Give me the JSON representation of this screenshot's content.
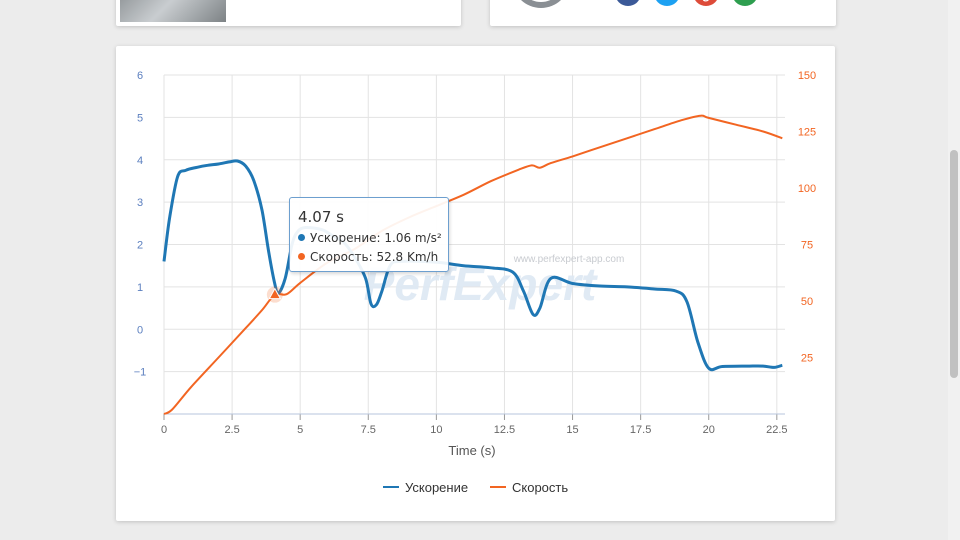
{
  "social_icons": [
    {
      "icon": "facebook-icon",
      "color": "#3b5998",
      "glyph": "f"
    },
    {
      "icon": "twitter-icon",
      "color": "#1da1f2",
      "glyph": "t"
    },
    {
      "icon": "google-plus-icon",
      "color": "#dd4b39",
      "glyph": "g"
    },
    {
      "icon": "email-icon",
      "color": "#2e9e4f",
      "glyph": "✉"
    }
  ],
  "chart_data": {
    "type": "line",
    "xlabel": "Time (s)",
    "x_ticks": [
      0,
      2.5,
      5,
      7.5,
      10,
      12.5,
      15,
      17.5,
      20,
      22.5
    ],
    "xlim": [
      0,
      22.8
    ],
    "y_left_ticks": [
      "6",
      "5",
      "4",
      "3",
      "2",
      "1",
      "0",
      "−1"
    ],
    "y_left_range": [
      -2,
      6
    ],
    "y_right_ticks": [
      "150",
      "125",
      "100",
      "75",
      "50",
      "25"
    ],
    "y_right_range": [
      0,
      150
    ],
    "watermark_url": "www.perfexpert-app.com",
    "watermark_logo": "PerfExpert",
    "series": [
      {
        "name": "Ускорение",
        "axis": "left",
        "color": "#1f77b4",
        "points": [
          [
            0,
            1.6
          ],
          [
            0.2,
            2.6
          ],
          [
            0.5,
            3.6
          ],
          [
            0.8,
            3.75
          ],
          [
            1.2,
            3.82
          ],
          [
            1.6,
            3.87
          ],
          [
            2.0,
            3.9
          ],
          [
            2.4,
            3.95
          ],
          [
            2.7,
            3.97
          ],
          [
            3.0,
            3.85
          ],
          [
            3.3,
            3.5
          ],
          [
            3.6,
            2.8
          ],
          [
            3.85,
            1.8
          ],
          [
            4.07,
            1.06
          ],
          [
            4.2,
            0.85
          ],
          [
            4.45,
            1.2
          ],
          [
            4.7,
            2.0
          ],
          [
            4.9,
            2.3
          ],
          [
            5.2,
            2.4
          ],
          [
            5.8,
            2.35
          ],
          [
            6.2,
            2.2
          ],
          [
            6.6,
            2.05
          ],
          [
            7.0,
            1.7
          ],
          [
            7.4,
            1.2
          ],
          [
            7.6,
            0.6
          ],
          [
            7.8,
            0.58
          ],
          [
            8.0,
            0.9
          ],
          [
            8.3,
            1.5
          ],
          [
            8.7,
            1.6
          ],
          [
            10,
            1.58
          ],
          [
            11,
            1.5
          ],
          [
            12,
            1.45
          ],
          [
            12.8,
            1.35
          ],
          [
            13.2,
            0.9
          ],
          [
            13.55,
            0.35
          ],
          [
            13.8,
            0.5
          ],
          [
            14.2,
            1.2
          ],
          [
            15,
            1.08
          ],
          [
            16,
            1.02
          ],
          [
            17,
            1.0
          ],
          [
            18,
            0.95
          ],
          [
            18.8,
            0.9
          ],
          [
            19.2,
            0.65
          ],
          [
            19.6,
            -0.3
          ],
          [
            20.0,
            -0.92
          ],
          [
            20.5,
            -0.88
          ],
          [
            21.5,
            -0.87
          ],
          [
            22,
            -0.87
          ],
          [
            22.4,
            -0.9
          ],
          [
            22.7,
            -0.85
          ]
        ]
      },
      {
        "name": "Скорость",
        "axis": "right",
        "color": "#f26522",
        "points": [
          [
            0,
            0
          ],
          [
            0.3,
            2
          ],
          [
            1,
            12
          ],
          [
            2,
            25
          ],
          [
            3,
            38
          ],
          [
            3.6,
            46
          ],
          [
            4.07,
            52.8
          ],
          [
            4.5,
            53
          ],
          [
            5,
            58
          ],
          [
            6,
            67
          ],
          [
            7,
            73
          ],
          [
            8,
            81
          ],
          [
            9,
            87
          ],
          [
            10,
            92
          ],
          [
            11,
            97
          ],
          [
            12,
            103
          ],
          [
            13,
            108
          ],
          [
            13.5,
            110
          ],
          [
            13.8,
            109
          ],
          [
            14.2,
            111
          ],
          [
            15,
            114
          ],
          [
            16,
            118
          ],
          [
            17,
            122
          ],
          [
            18,
            126
          ],
          [
            19,
            130
          ],
          [
            19.7,
            132
          ],
          [
            20,
            131
          ],
          [
            21,
            128
          ],
          [
            22,
            125
          ],
          [
            22.7,
            122
          ]
        ]
      }
    ],
    "hover": {
      "time_label": "4.07 s",
      "rows": [
        {
          "series": "Ускорение",
          "value": "1.06 m/s²"
        },
        {
          "series": "Скорость",
          "value": "52.8 Km/h"
        }
      ],
      "x": 4.07,
      "speed_value": 52.8
    },
    "legend": [
      "Ускорение",
      "Скорость"
    ],
    "legend_placement": "bottom-center"
  }
}
